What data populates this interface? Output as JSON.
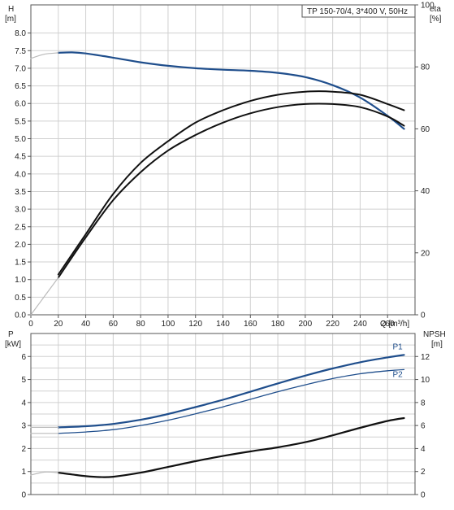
{
  "chart_data": [
    {
      "type": "line",
      "title": "TP 150-70/4, 3*400 V, 50Hz",
      "xlabel": "Q [m³/h]",
      "ylabel_left": [
        "H",
        "[m]"
      ],
      "ylabel_right": [
        "eta",
        "[%]"
      ],
      "xlim": [
        0,
        280
      ],
      "ylim_left": [
        0,
        8.8
      ],
      "ylim_right": [
        0,
        100
      ],
      "x_ticks": [
        "0",
        "20",
        "40",
        "60",
        "80",
        "100",
        "120",
        "140",
        "160",
        "180",
        "200",
        "220",
        "240",
        "260"
      ],
      "y_ticks_left": [
        "0.0",
        "0.5",
        "1.0",
        "1.5",
        "2.0",
        "2.5",
        "3.0",
        "3.5",
        "4.0",
        "4.5",
        "5.0",
        "5.5",
        "6.0",
        "6.5",
        "7.0",
        "7.5",
        "8.0"
      ],
      "y_ticks_right": [
        "0",
        "20",
        "40",
        "60",
        "80",
        "100"
      ],
      "grid": true,
      "series": [
        {
          "axis": "left",
          "color": "#1f4e8c",
          "x": [
            20,
            30,
            40,
            60,
            80,
            100,
            120,
            140,
            160,
            180,
            200,
            220,
            240,
            260,
            272
          ],
          "y": [
            7.44,
            7.45,
            7.42,
            7.3,
            7.17,
            7.07,
            7.0,
            6.96,
            6.93,
            6.87,
            6.75,
            6.52,
            6.17,
            5.65,
            5.28
          ]
        },
        {
          "axis": "left",
          "color": "#bbbbbb",
          "dashed": false,
          "x": [
            0,
            10,
            20
          ],
          "y": [
            7.28,
            7.4,
            7.44
          ]
        },
        {
          "axis": "right",
          "color": "#111111",
          "x": [
            20,
            40,
            60,
            80,
            100,
            120,
            140,
            160,
            180,
            200,
            220,
            240,
            260,
            272
          ],
          "y": [
            12,
            25,
            37,
            46,
            53,
            58,
            62,
            65,
            67,
            68,
            68,
            67,
            64,
            61
          ]
        },
        {
          "axis": "right",
          "color": "#111111",
          "x": [
            20,
            40,
            60,
            80,
            100,
            120,
            140,
            160,
            180,
            200,
            220,
            240,
            260,
            272
          ],
          "y": [
            13,
            26,
            39,
            49,
            56,
            62,
            66,
            69,
            71,
            72,
            72,
            71,
            68,
            66
          ]
        },
        {
          "axis": "right",
          "color": "#bbbbbb",
          "x": [
            0,
            10,
            20
          ],
          "y": [
            0,
            6,
            12
          ]
        }
      ]
    },
    {
      "type": "line",
      "xlim": [
        0,
        280
      ],
      "ylabel_left": [
        "P",
        "[kW]"
      ],
      "ylabel_right": [
        "NPSH",
        "[m]"
      ],
      "ylim_left": [
        0,
        7
      ],
      "ylim_right": [
        0,
        14
      ],
      "y_ticks_left": [
        "0",
        "1",
        "2",
        "3",
        "4",
        "5",
        "6"
      ],
      "y_ticks_right": [
        "0",
        "2",
        "4",
        "6",
        "8",
        "10",
        "12"
      ],
      "grid": true,
      "series": [
        {
          "name": "P1",
          "axis": "left",
          "color": "#1f4e8c",
          "x": [
            20,
            40,
            60,
            80,
            100,
            120,
            140,
            160,
            180,
            200,
            220,
            240,
            260,
            272
          ],
          "y": [
            2.92,
            2.97,
            3.07,
            3.25,
            3.5,
            3.8,
            4.12,
            4.47,
            4.83,
            5.17,
            5.48,
            5.75,
            5.96,
            6.07
          ]
        },
        {
          "name": "P2",
          "axis": "left",
          "color": "#1f4e8c",
          "x": [
            20,
            40,
            60,
            80,
            100,
            120,
            140,
            160,
            180,
            200,
            220,
            240,
            260,
            272
          ],
          "y": [
            2.66,
            2.72,
            2.82,
            3.0,
            3.23,
            3.51,
            3.81,
            4.14,
            4.47,
            4.77,
            5.04,
            5.25,
            5.38,
            5.43
          ]
        },
        {
          "axis": "right",
          "color": "#111111",
          "x": [
            20,
            30,
            40,
            50,
            60,
            80,
            100,
            120,
            140,
            160,
            180,
            200,
            220,
            240,
            260,
            272
          ],
          "y": [
            1.9,
            1.75,
            1.6,
            1.52,
            1.55,
            1.9,
            2.4,
            2.9,
            3.35,
            3.75,
            4.1,
            4.55,
            5.15,
            5.8,
            6.4,
            6.65
          ]
        },
        {
          "axis": "left",
          "color": "#bbbbbb",
          "x": [
            0,
            10,
            20
          ],
          "y": [
            2.92,
            2.92,
            2.92
          ]
        },
        {
          "axis": "left",
          "color": "#bbbbbb",
          "x": [
            0,
            10,
            20
          ],
          "y": [
            2.66,
            2.66,
            2.66
          ]
        },
        {
          "axis": "right",
          "color": "#bbbbbb",
          "x": [
            0,
            10,
            20
          ],
          "y": [
            1.7,
            1.95,
            1.9
          ]
        }
      ]
    }
  ]
}
